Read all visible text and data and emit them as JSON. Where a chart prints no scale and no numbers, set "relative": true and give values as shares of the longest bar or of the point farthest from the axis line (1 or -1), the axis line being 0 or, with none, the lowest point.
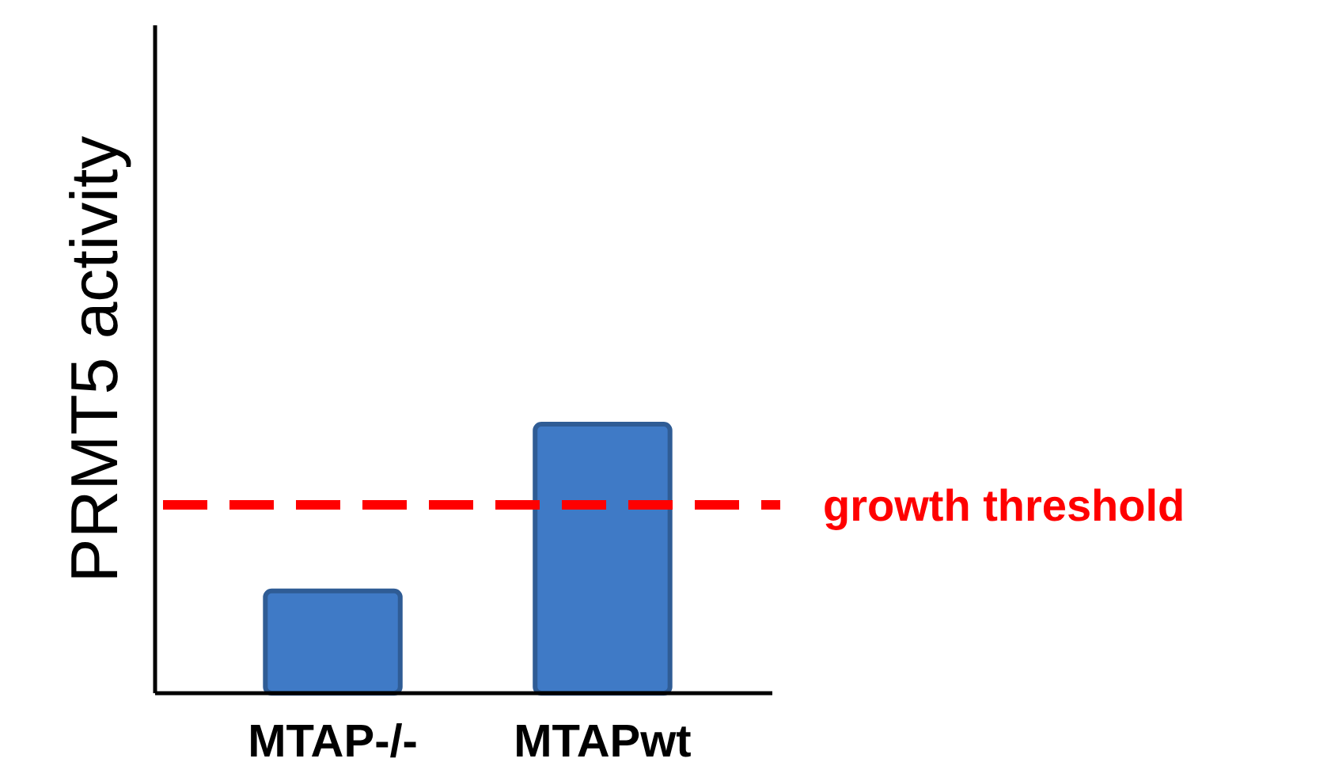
{
  "chart_data": {
    "type": "bar",
    "relative": true,
    "ylabel": "PRMT5 activity",
    "categories": [
      "MTAP-/-",
      "MTAPwt"
    ],
    "values": [
      0.38,
      1
    ],
    "color": "#3f7ac6",
    "ref_lines": [
      {
        "axis": "y",
        "value": 0.7,
        "label": "growth threshold",
        "color": "#ff0000",
        "line_style": "dashed"
      }
    ]
  }
}
